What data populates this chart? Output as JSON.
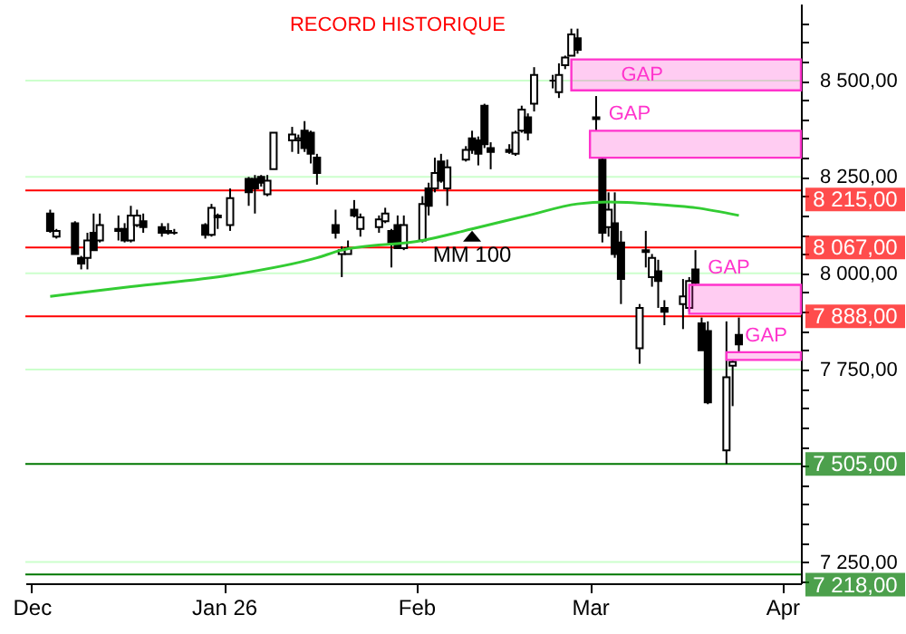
{
  "chart_data": {
    "type": "candlestick",
    "annotations": [
      "RECORD HISTORIQUE"
    ],
    "x": [
      "2025-12-04",
      "2025-12-05",
      "2025-12-08",
      "2025-12-09",
      "2025-12-10",
      "2025-12-11",
      "2025-12-12",
      "2025-12-15",
      "2025-12-16",
      "2025-12-17",
      "2025-12-18",
      "2025-12-19",
      "2025-12-22",
      "2025-12-23",
      "2025-12-24",
      "2025-12-29",
      "2025-12-30",
      "2025-12-31",
      "2026-01-02",
      "2026-01-05",
      "2026-01-06",
      "2026-01-07",
      "2026-01-08",
      "2026-01-09",
      "2026-01-12",
      "2026-01-13",
      "2026-01-14",
      "2026-01-15",
      "2026-01-16",
      "2026-01-19",
      "2026-01-20",
      "2026-01-21",
      "2026-01-22",
      "2026-01-23",
      "2026-01-26",
      "2026-01-27",
      "2026-01-28",
      "2026-01-29",
      "2026-01-30",
      "2026-02-02",
      "2026-02-03",
      "2026-02-04",
      "2026-02-05",
      "2026-02-06",
      "2026-02-09",
      "2026-02-10",
      "2026-02-11",
      "2026-02-12",
      "2026-02-13",
      "2026-02-16",
      "2026-02-17",
      "2026-02-18",
      "2026-02-19",
      "2026-02-20",
      "2026-02-23",
      "2026-02-24",
      "2026-02-25",
      "2026-02-26",
      "2026-02-27",
      "2026-03-02",
      "2026-03-03",
      "2026-03-04",
      "2026-03-05",
      "2026-03-06",
      "2026-03-09",
      "2026-03-10",
      "2026-03-11",
      "2026-03-12",
      "2026-03-13",
      "2026-03-16",
      "2026-03-17",
      "2026-03-18",
      "2026-03-19",
      "2026-03-20",
      "2026-03-23",
      "2026-03-24",
      "2026-03-25"
    ],
    "ohlc": [
      [
        8155,
        8165,
        8105,
        8110
      ],
      [
        8095,
        8115,
        8090,
        8110
      ],
      [
        8130,
        8135,
        8050,
        8050
      ],
      [
        8040,
        8045,
        8010,
        8025
      ],
      [
        8040,
        8105,
        8010,
        8085
      ],
      [
        8105,
        8155,
        8060,
        8060
      ],
      [
        8085,
        8155,
        8080,
        8125
      ],
      [
        8115,
        8150,
        8085,
        8110
      ],
      [
        8115,
        8130,
        8080,
        8085
      ],
      [
        8085,
        8175,
        8080,
        8150
      ],
      [
        8125,
        8165,
        8120,
        8150
      ],
      [
        8135,
        8155,
        8105,
        8120
      ],
      [
        8120,
        8130,
        8095,
        8105
      ],
      [
        8105,
        8130,
        8100,
        8110
      ],
      [
        8105,
        8115,
        8100,
        8105
      ],
      [
        8125,
        8130,
        8090,
        8100
      ],
      [
        8100,
        8180,
        8095,
        8170
      ],
      [
        8145,
        8155,
        8115,
        8150
      ],
      [
        8125,
        8220,
        8110,
        8195
      ],
      [
        8245,
        8250,
        8175,
        8210
      ],
      [
        8245,
        8255,
        8155,
        8220
      ],
      [
        8250,
        8255,
        8225,
        8235
      ],
      [
        8205,
        8255,
        8200,
        8240
      ],
      [
        8270,
        8365,
        8270,
        8365
      ],
      [
        8345,
        8380,
        8315,
        8360
      ],
      [
        8345,
        8360,
        8310,
        8350
      ],
      [
        8370,
        8395,
        8315,
        8325
      ],
      [
        8365,
        8370,
        8285,
        8310
      ],
      [
        8300,
        8310,
        8230,
        8260
      ],
      [
        8125,
        8165,
        8090,
        8105
      ],
      [
        8050,
        8070,
        7990,
        8060
      ],
      [
        8050,
        8085,
        8050,
        8065
      ],
      [
        8165,
        8190,
        8145,
        8150
      ],
      [
        8115,
        8155,
        8095,
        8145
      ],
      [
        8120,
        8150,
        8105,
        8140
      ],
      [
        8135,
        8170,
        8130,
        8155
      ],
      [
        8110,
        8115,
        8015,
        8080
      ],
      [
        8125,
        8150,
        8065,
        8065
      ],
      [
        8065,
        8150,
        8060,
        8125
      ],
      [
        8085,
        8200,
        8080,
        8180
      ],
      [
        8220,
        8235,
        8150,
        8175
      ],
      [
        8220,
        8300,
        8210,
        8260
      ],
      [
        8290,
        8310,
        8235,
        8240
      ],
      [
        8220,
        8295,
        8175,
        8275
      ],
      [
        8295,
        8330,
        8290,
        8320
      ],
      [
        8350,
        8370,
        8310,
        8320
      ],
      [
        8345,
        8355,
        8280,
        8310
      ],
      [
        8435,
        8440,
        8325,
        8335
      ],
      [
        8325,
        8340,
        8270,
        8315
      ],
      [
        8320,
        8335,
        8310,
        8315
      ],
      [
        8310,
        8370,
        8305,
        8365
      ],
      [
        8370,
        8435,
        8365,
        8425
      ],
      [
        8405,
        8415,
        8345,
        8365
      ],
      [
        8440,
        8535,
        8420,
        8515
      ],
      [
        8500,
        8515,
        8480,
        8500
      ],
      [
        8470,
        8545,
        8455,
        8515
      ],
      [
        8540,
        8565,
        8530,
        8560
      ],
      [
        8565,
        8635,
        8565,
        8620
      ],
      [
        8610,
        8635,
        8570,
        8580
      ],
      [
        8405,
        8460,
        8370,
        8400
      ],
      [
        8295,
        8300,
        8080,
        8105
      ],
      [
        8120,
        8210,
        8095,
        8165
      ],
      [
        8130,
        8210,
        8040,
        8050
      ],
      [
        8080,
        8110,
        7920,
        7985
      ],
      [
        7805,
        7920,
        7765,
        7910
      ],
      [
        8060,
        8110,
        8015,
        8055
      ],
      [
        7990,
        8050,
        7965,
        8040
      ],
      [
        8005,
        8035,
        7910,
        7980
      ],
      [
        7910,
        7930,
        7865,
        7900
      ],
      [
        7920,
        7985,
        7855,
        7940
      ],
      [
        7910,
        7990,
        7900,
        7980
      ],
      [
        8010,
        8060,
        7970,
        7975
      ],
      [
        7870,
        7885,
        7800,
        7800
      ],
      [
        7850,
        7875,
        7660,
        7665
      ],
      [
        7540,
        7875,
        7505,
        7730
      ],
      [
        7760,
        7775,
        7655,
        7770
      ],
      [
        7840,
        7885,
        7795,
        7815
      ]
    ],
    "series": [
      {
        "name": "MM 100",
        "type": "line",
        "color": "#33cc33",
        "x": [
          "2025-12-04",
          "2025-12-17",
          "2026-01-02",
          "2026-01-16",
          "2026-01-20",
          "2026-02-02",
          "2026-02-10",
          "2026-02-19",
          "2026-02-27",
          "2026-03-04",
          "2026-03-11",
          "2026-03-18",
          "2026-03-25"
        ],
        "values": [
          7940,
          7965,
          7995,
          8040,
          8060,
          8085,
          8115,
          8150,
          8180,
          8185,
          8180,
          8170,
          8150
        ]
      }
    ],
    "xlim": [
      "2025-11-30",
      "2026-04-04"
    ],
    "xticks": [
      {
        "value": "2025-12-01",
        "label": "Dec"
      },
      {
        "value": "2026-01-01",
        "label": "Jan 26"
      },
      {
        "value": "2026-02-01",
        "label": "Feb"
      },
      {
        "value": "2026-03-01",
        "label": "Mar"
      },
      {
        "value": "2026-04-01",
        "label": "Apr"
      }
    ],
    "ylim": [
      7195,
      8700
    ],
    "yticks": [
      {
        "value": 7200,
        "label": null
      },
      {
        "value": 7250,
        "label": "7 250,00"
      },
      {
        "value": 7300,
        "label": null
      },
      {
        "value": 7350,
        "label": null
      },
      {
        "value": 7400,
        "label": null
      },
      {
        "value": 7450,
        "label": null
      },
      {
        "value": 7500,
        "label": null
      },
      {
        "value": 7550,
        "label": null
      },
      {
        "value": 7600,
        "label": null
      },
      {
        "value": 7650,
        "label": null
      },
      {
        "value": 7700,
        "label": null
      },
      {
        "value": 7750,
        "label": "7 750,00"
      },
      {
        "value": 7800,
        "label": null
      },
      {
        "value": 7850,
        "label": null
      },
      {
        "value": 7900,
        "label": null
      },
      {
        "value": 7950,
        "label": null
      },
      {
        "value": 8000,
        "label": "8 000,00"
      },
      {
        "value": 8050,
        "label": null
      },
      {
        "value": 8100,
        "label": null
      },
      {
        "value": 8150,
        "label": null
      },
      {
        "value": 8200,
        "label": null
      },
      {
        "value": 8250,
        "label": "8 250,00"
      },
      {
        "value": 8300,
        "label": null
      },
      {
        "value": 8350,
        "label": null
      },
      {
        "value": 8400,
        "label": null
      },
      {
        "value": 8450,
        "label": null
      },
      {
        "value": 8500,
        "label": "8 500,00"
      },
      {
        "value": 8550,
        "label": null
      },
      {
        "value": 8600,
        "label": null
      },
      {
        "value": 8650,
        "label": null
      }
    ],
    "ref_lines": [
      {
        "axis": "y",
        "value": 8215,
        "label": "8 215,00",
        "color": "#ff0000"
      },
      {
        "axis": "y",
        "value": 8067,
        "label": "8 067,00",
        "color": "#ff0000"
      },
      {
        "axis": "y",
        "value": 7888,
        "label": "7 888,00",
        "color": "#ff0000"
      },
      {
        "axis": "y",
        "value": 7505,
        "label": "7 505,00",
        "color": "#007700"
      },
      {
        "axis": "y",
        "value": 7218,
        "label": "7 218,00",
        "color": "#007700"
      }
    ],
    "bands": [
      {
        "axis": "y",
        "from": 8475,
        "to": 8555,
        "label": "GAP",
        "color": "#ff33cc"
      },
      {
        "axis": "y",
        "from": 8300,
        "to": 8370,
        "label": "GAP",
        "color": "#ff33cc"
      },
      {
        "axis": "y",
        "from": 7895,
        "to": 7970,
        "label": "GAP",
        "color": "#ff33cc"
      },
      {
        "axis": "y",
        "from": 7775,
        "to": 7795,
        "label": "GAP",
        "color": "#ff33cc"
      }
    ],
    "grid": "y"
  }
}
